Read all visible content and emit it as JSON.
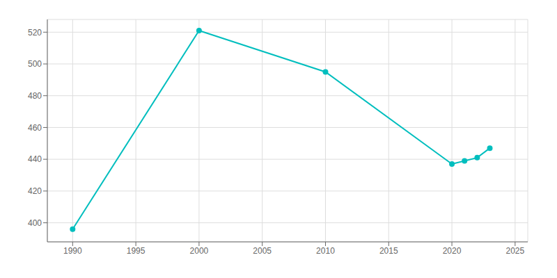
{
  "chart_data": {
    "type": "line",
    "x": [
      1990,
      2000,
      2010,
      2020,
      2021,
      2022,
      2023
    ],
    "values": [
      396,
      521,
      495,
      437,
      439,
      441,
      447
    ],
    "color": "#00BEBE",
    "marker": "circle",
    "xlim": [
      1988,
      2026
    ],
    "ylim": [
      388,
      528
    ],
    "xticks": [
      1990,
      1995,
      2000,
      2005,
      2010,
      2015,
      2020,
      2025
    ],
    "yticks": [
      400,
      420,
      440,
      460,
      480,
      500,
      520
    ],
    "grid": true
  }
}
